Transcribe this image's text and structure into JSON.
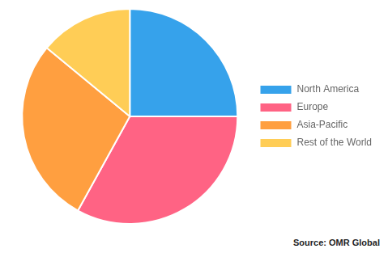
{
  "chart_data": {
    "type": "pie",
    "categories": [
      "North America",
      "Europe",
      "Asia-Pacific",
      "Rest of the World"
    ],
    "values": [
      25,
      33,
      28,
      14
    ],
    "legend": "right",
    "annotation": "Source: OMR Global"
  }
}
